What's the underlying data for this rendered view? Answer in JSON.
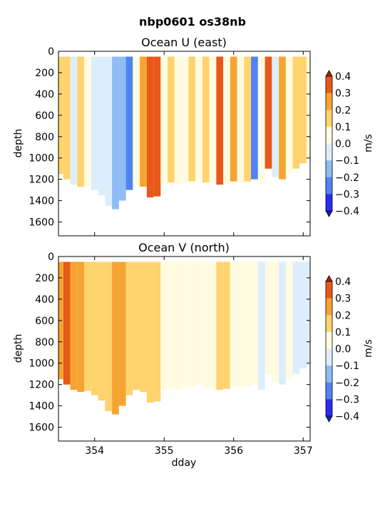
{
  "figure_title": "nbp0601 os38nb",
  "colors": {
    "levels": [
      "#2a2af5",
      "#4f84f3",
      "#8fbcf6",
      "#dceefb",
      "#fffbe0",
      "#ffd46e",
      "#f6a431",
      "#e8581a"
    ],
    "under": "#1e1ec8",
    "over": "#b0200c"
  },
  "colorbar": {
    "label": "m/s",
    "ticks": [
      "0.4",
      "0.3",
      "0.2",
      "0.1",
      "0.0",
      "−0.1",
      "−0.2",
      "−0.3",
      "−0.4"
    ]
  },
  "shared_x": {
    "label": "dday",
    "ticks": [
      "354",
      "355",
      "356",
      "357"
    ]
  },
  "chart_data": [
    {
      "type": "heatmap",
      "title": "Ocean U (east)",
      "ylabel": "depth",
      "xlabel": "",
      "xlim": [
        353.48,
        357.1
      ],
      "ylim": [
        1730,
        0
      ],
      "x_ticks": [
        354,
        355,
        356,
        357
      ],
      "y_ticks": [
        0,
        200,
        400,
        600,
        800,
        1000,
        1200,
        1400,
        1600
      ],
      "y_tick_labels": [
        "0",
        "200",
        "400",
        "600",
        "800",
        "1000",
        "1200",
        "1400",
        "1600"
      ],
      "levels": [
        -0.4,
        -0.3,
        -0.2,
        -0.1,
        0.0,
        0.1,
        0.2,
        0.3,
        0.4
      ],
      "units": "m/s",
      "data_top_depth": 50,
      "x": [
        353.5,
        353.6,
        353.7,
        353.8,
        353.9,
        354.0,
        354.1,
        354.2,
        354.3,
        354.4,
        354.5,
        354.6,
        354.7,
        354.8,
        354.9,
        355.0,
        355.1,
        355.2,
        355.3,
        355.4,
        355.5,
        355.6,
        355.7,
        355.8,
        355.9,
        356.0,
        356.1,
        356.2,
        356.3,
        356.4,
        356.5,
        356.6,
        356.7,
        356.8,
        356.9,
        357.0,
        357.1
      ],
      "max_depth": [
        1150,
        1200,
        1250,
        1270,
        1260,
        1300,
        1350,
        1450,
        1480,
        1400,
        1300,
        1250,
        1270,
        1370,
        1360,
        1250,
        1230,
        1250,
        1230,
        1220,
        1200,
        1230,
        1240,
        1250,
        1240,
        1220,
        1230,
        1220,
        1200,
        1250,
        1100,
        1180,
        1200,
        1150,
        1100,
        1050,
        1000
      ],
      "value": [
        0.15,
        0.1,
        -0.05,
        0.1,
        0.05,
        -0.08,
        -0.05,
        -0.1,
        -0.12,
        -0.18,
        -0.22,
        0.05,
        0.25,
        0.32,
        0.3,
        0.05,
        0.15,
        0.0,
        0.05,
        0.1,
        0.05,
        0.1,
        0.05,
        0.3,
        0.05,
        0.2,
        0.05,
        0.15,
        -0.25,
        0.05,
        0.38,
        -0.05,
        0.25,
        0.05,
        0.1,
        0.15,
        0.0
      ]
    },
    {
      "type": "heatmap",
      "title": "Ocean V (north)",
      "ylabel": "depth",
      "xlabel": "dday",
      "xlim": [
        353.48,
        357.1
      ],
      "ylim": [
        1730,
        0
      ],
      "x_ticks": [
        354,
        355,
        356,
        357
      ],
      "y_ticks": [
        0,
        200,
        400,
        600,
        800,
        1000,
        1200,
        1400,
        1600
      ],
      "y_tick_labels": [
        "0",
        "200",
        "400",
        "600",
        "800",
        "1000",
        "1200",
        "1400",
        "1600"
      ],
      "levels": [
        -0.4,
        -0.3,
        -0.2,
        -0.1,
        0.0,
        0.1,
        0.2,
        0.3,
        0.4
      ],
      "units": "m/s",
      "data_top_depth": 50,
      "x": [
        353.5,
        353.6,
        353.7,
        353.8,
        353.9,
        354.0,
        354.1,
        354.2,
        354.3,
        354.4,
        354.5,
        354.6,
        354.7,
        354.8,
        354.9,
        355.0,
        355.1,
        355.2,
        355.3,
        355.4,
        355.5,
        355.6,
        355.7,
        355.8,
        355.9,
        356.0,
        356.1,
        356.2,
        356.3,
        356.4,
        356.5,
        356.6,
        356.7,
        356.8,
        356.9,
        357.0,
        357.1
      ],
      "max_depth": [
        1150,
        1200,
        1250,
        1270,
        1260,
        1300,
        1350,
        1450,
        1480,
        1400,
        1300,
        1250,
        1270,
        1370,
        1360,
        1250,
        1230,
        1250,
        1230,
        1220,
        1200,
        1230,
        1240,
        1250,
        1240,
        1220,
        1230,
        1220,
        1200,
        1250,
        1100,
        1180,
        1200,
        1150,
        1100,
        1050,
        1000
      ],
      "value": [
        0.25,
        0.3,
        0.28,
        0.2,
        0.18,
        0.15,
        0.12,
        0.15,
        0.2,
        0.22,
        0.18,
        0.15,
        0.1,
        0.12,
        0.15,
        0.05,
        0.03,
        0.05,
        0.0,
        0.05,
        0.03,
        0.08,
        0.05,
        0.1,
        0.12,
        0.05,
        0.0,
        0.05,
        0.0,
        -0.02,
        0.0,
        0.02,
        -0.05,
        0.0,
        -0.03,
        -0.08,
        -0.05
      ]
    }
  ]
}
